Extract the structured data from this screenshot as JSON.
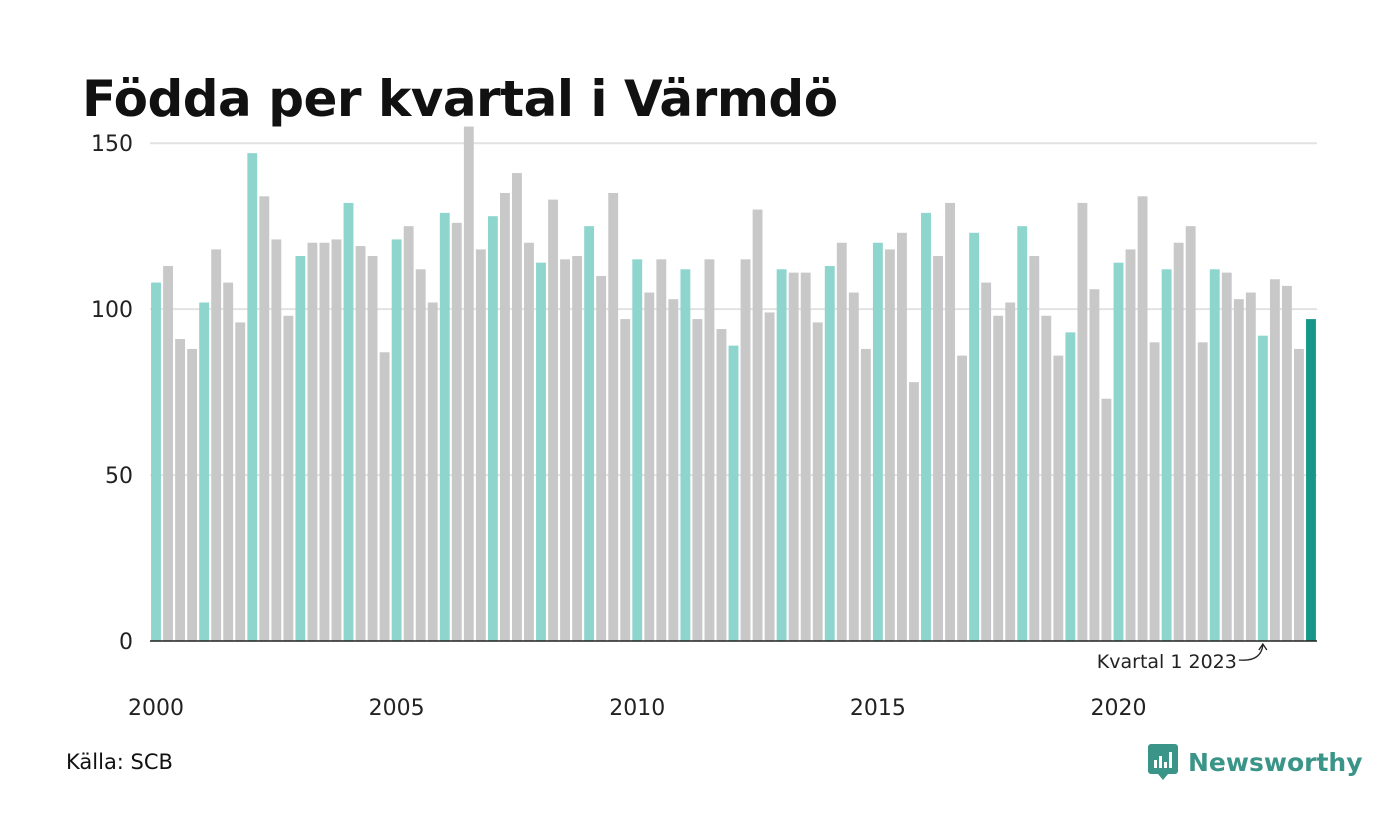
{
  "title": "Födda per kvartal i Värmdö",
  "source": "Källa: SCB",
  "brand": "Newsworthy",
  "colors": {
    "q1": "#8dd5cd",
    "other": "#c8c8c8",
    "highlight": "#17978a",
    "grid": "#e2e2e2",
    "axis": "#222222",
    "brand": "#3a9488"
  },
  "chart_data": {
    "type": "bar",
    "ylim": [
      0,
      160
    ],
    "yticks": [
      "0",
      "50",
      "100",
      "150"
    ],
    "xtick_labels": [
      "2000",
      "2005",
      "2010",
      "2015",
      "2020"
    ],
    "annotation": "Kvartal 1 2023",
    "start_year": 2000,
    "start_quarter": 1,
    "values": [
      108,
      113,
      91,
      88,
      102,
      118,
      108,
      96,
      147,
      134,
      121,
      98,
      116,
      120,
      120,
      121,
      132,
      119,
      116,
      87,
      121,
      125,
      112,
      102,
      129,
      126,
      155,
      118,
      128,
      135,
      141,
      120,
      114,
      133,
      115,
      116,
      125,
      110,
      135,
      97,
      115,
      105,
      115,
      103,
      112,
      97,
      115,
      94,
      89,
      115,
      130,
      99,
      112,
      111,
      111,
      96,
      113,
      120,
      105,
      88,
      120,
      118,
      123,
      78,
      129,
      116,
      132,
      86,
      123,
      108,
      98,
      102,
      125,
      116,
      98,
      86,
      93,
      132,
      106,
      73,
      114,
      118,
      134,
      90,
      112,
      120,
      125,
      90,
      112,
      111,
      103,
      105,
      92,
      109,
      107,
      88,
      97
    ]
  }
}
